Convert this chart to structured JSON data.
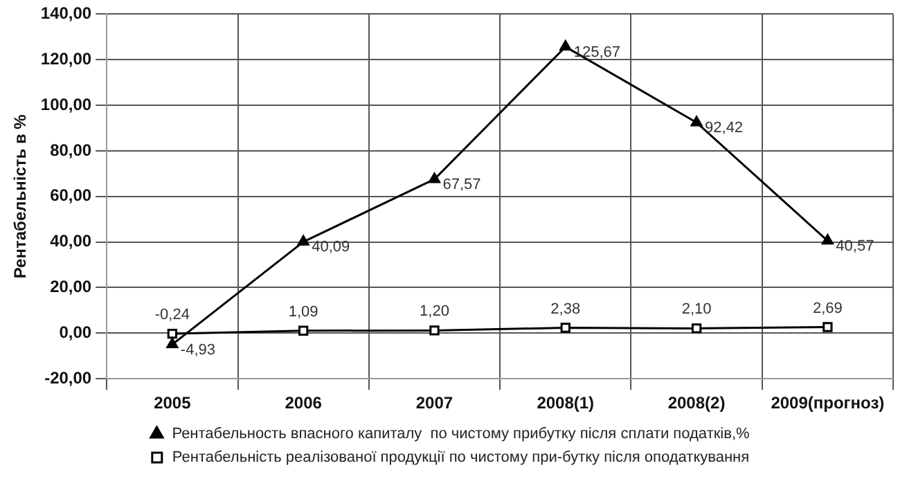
{
  "chart_data": {
    "type": "line",
    "ylabel": "Рентабельність в %",
    "categories": [
      "2005",
      "2006",
      "2007",
      "2008(1)",
      "2008(2)",
      "2009(прогноз)"
    ],
    "series": [
      {
        "name": "Рентабельность впасного капиталу  по чистому прибутку після сплати податків,%",
        "color": "#000000",
        "marker": "triangle",
        "values": [
          -4.93,
          40.09,
          67.57,
          125.67,
          92.42,
          40.57
        ],
        "value_labels": [
          "-4,93",
          "40,09",
          "67,57",
          "125,67",
          "92,42",
          "40,57"
        ]
      },
      {
        "name": "Рентабельність реалізованої продукції по чистому при-бутку після оподаткування",
        "color": "#000000",
        "marker": "square",
        "values": [
          -0.24,
          1.09,
          1.2,
          2.38,
          2.1,
          2.69
        ],
        "value_labels": [
          "-0,24",
          "1,09",
          "1,20",
          "2,38",
          "2,10",
          "2,69"
        ]
      }
    ],
    "ylim": [
      -20,
      140
    ],
    "yticks": [
      {
        "value": -20,
        "label": "-20,00"
      },
      {
        "value": 0,
        "label": "0,00"
      },
      {
        "value": 20,
        "label": "20,00"
      },
      {
        "value": 40,
        "label": "40,00"
      },
      {
        "value": 60,
        "label": "60,00"
      },
      {
        "value": 80,
        "label": "80,00"
      },
      {
        "value": 100,
        "label": "100,00"
      },
      {
        "value": 120,
        "label": "120,00"
      },
      {
        "value": 140,
        "label": "140,00"
      }
    ],
    "grid": true,
    "legend": "bottom",
    "line_style": "solid"
  }
}
